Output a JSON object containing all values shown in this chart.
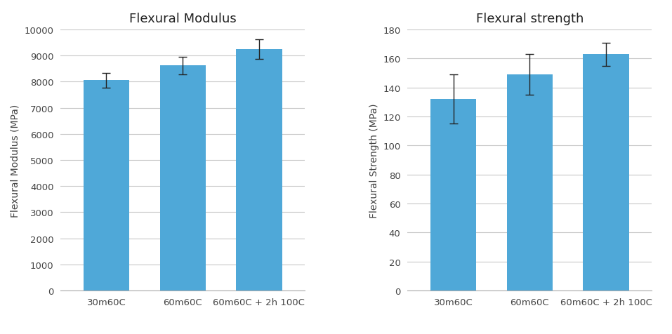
{
  "chart1": {
    "title": "Flexural Modulus",
    "ylabel": "Flexural Modulus (MPa)",
    "categories": [
      "30m60C",
      "60m60C",
      "60m60C + 2h 100C"
    ],
    "values": [
      8050,
      8620,
      9250
    ],
    "errors": [
      280,
      330,
      370
    ],
    "ylim": [
      0,
      10000
    ],
    "yticks": [
      0,
      1000,
      2000,
      3000,
      4000,
      5000,
      6000,
      7000,
      8000,
      9000,
      10000
    ],
    "bar_color": "#4FA8D8"
  },
  "chart2": {
    "title": "Flexural strength",
    "ylabel": "Flexural Strength (MPa)",
    "categories": [
      "30m60C",
      "60m60C",
      "60m60C + 2h 100C"
    ],
    "values": [
      132,
      149,
      163
    ],
    "errors": [
      17,
      14,
      8
    ],
    "ylim": [
      0,
      180
    ],
    "yticks": [
      0,
      20,
      40,
      60,
      80,
      100,
      120,
      140,
      160,
      180
    ],
    "bar_color": "#4FA8D8"
  },
  "background_color": "#FFFFFF",
  "grid_color": "#C8C8C8",
  "title_fontsize": 13,
  "label_fontsize": 10,
  "tick_fontsize": 9.5,
  "bar_width": 0.6,
  "error_capsize": 4,
  "error_color": "#222222",
  "figure_width": 9.57,
  "figure_height": 4.77,
  "dpi": 100
}
